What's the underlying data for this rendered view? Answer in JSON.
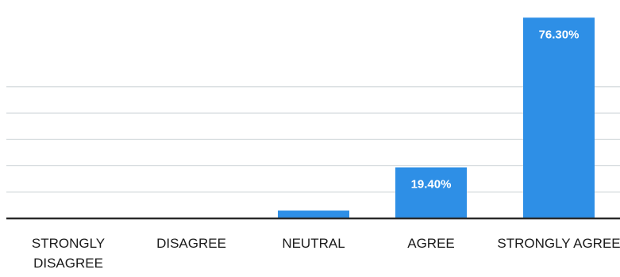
{
  "chart_data": {
    "type": "bar",
    "categories": [
      [
        "STRONGLY",
        "DISAGREE"
      ],
      [
        "DISAGREE"
      ],
      [
        "NEUTRAL"
      ],
      [
        "AGREE"
      ],
      [
        "STRONGLY AGREE"
      ]
    ],
    "values": [
      0,
      0,
      3.0,
      19.4,
      76.3
    ],
    "data_labels": [
      "",
      "",
      "",
      "19.40%",
      "76.30%"
    ],
    "ylim": [
      0,
      80
    ],
    "grid": true,
    "legend": "none",
    "colors": {
      "bar": "#2e8fe6",
      "grid": "#c8d0d4",
      "axis": "#2a2a2a",
      "text": "#1a1a1a"
    }
  }
}
